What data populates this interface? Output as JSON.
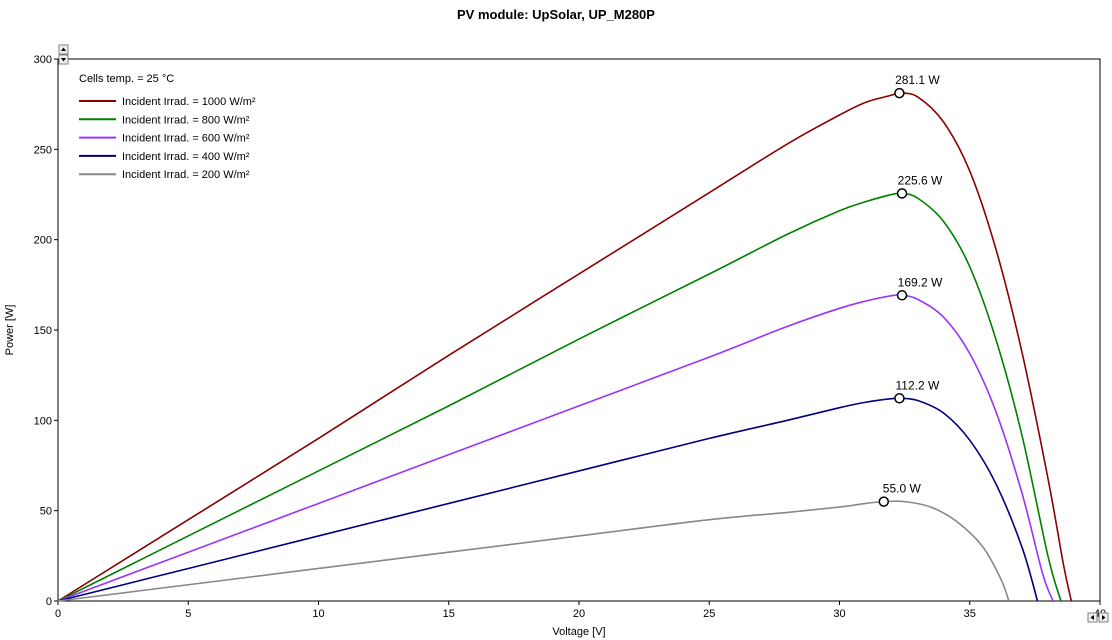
{
  "chart_data": {
    "type": "line",
    "title": "PV module:  UpSolar,  UP_M280P",
    "xlabel": "Voltage [V]",
    "ylabel": "Power [W]",
    "xlim": [
      0,
      40
    ],
    "ylim": [
      0,
      300
    ],
    "xticks": [
      0,
      5,
      10,
      15,
      20,
      25,
      30,
      35,
      40
    ],
    "yticks": [
      0,
      50,
      100,
      150,
      200,
      250,
      300
    ],
    "grid": false,
    "legend_position": "top-left",
    "legend_header": "Cells temp. = 25 °C",
    "series": [
      {
        "name": "Incident Irrad. = 1000 W/m²",
        "color": "#8b0000",
        "points": [
          [
            0,
            0
          ],
          [
            5,
            45
          ],
          [
            10,
            90
          ],
          [
            15,
            136
          ],
          [
            20,
            181
          ],
          [
            25,
            226
          ],
          [
            28,
            253
          ],
          [
            30,
            269
          ],
          [
            31,
            276
          ],
          [
            32,
            280
          ],
          [
            32.3,
            281.1
          ],
          [
            33,
            279
          ],
          [
            34,
            265
          ],
          [
            35,
            238
          ],
          [
            36,
            195
          ],
          [
            37,
            138
          ],
          [
            38,
            68
          ],
          [
            38.6,
            20
          ],
          [
            38.9,
            0
          ]
        ],
        "mpp": {
          "v": 32.3,
          "p": 281.1,
          "label": "281.1 W"
        }
      },
      {
        "name": "Incident Irrad. = 800 W/m²",
        "color": "#008000",
        "points": [
          [
            0,
            0
          ],
          [
            5,
            36
          ],
          [
            10,
            72
          ],
          [
            15,
            108
          ],
          [
            20,
            145
          ],
          [
            25,
            181
          ],
          [
            28,
            203
          ],
          [
            30,
            216
          ],
          [
            31,
            221
          ],
          [
            32,
            225
          ],
          [
            32.4,
            225.6
          ],
          [
            33,
            223
          ],
          [
            34,
            210
          ],
          [
            35,
            185
          ],
          [
            36,
            145
          ],
          [
            37,
            92
          ],
          [
            38,
            25
          ],
          [
            38.5,
            0
          ]
        ],
        "mpp": {
          "v": 32.4,
          "p": 225.6,
          "label": "225.6 W"
        }
      },
      {
        "name": "Incident Irrad. = 600 W/m²",
        "color": "#9933ff",
        "points": [
          [
            0,
            0
          ],
          [
            5,
            27
          ],
          [
            10,
            54
          ],
          [
            15,
            81
          ],
          [
            20,
            108
          ],
          [
            25,
            135
          ],
          [
            28,
            152
          ],
          [
            30,
            162
          ],
          [
            31,
            166
          ],
          [
            32,
            169
          ],
          [
            32.4,
            169.2
          ],
          [
            33,
            167
          ],
          [
            34,
            157
          ],
          [
            35,
            137
          ],
          [
            36,
            105
          ],
          [
            37,
            60
          ],
          [
            37.8,
            15
          ],
          [
            38.2,
            0
          ]
        ],
        "mpp": {
          "v": 32.4,
          "p": 169.2,
          "label": "169.2 W"
        }
      },
      {
        "name": "Incident Irrad. = 400 W/m²",
        "color": "#000080",
        "points": [
          [
            0,
            0
          ],
          [
            5,
            18
          ],
          [
            10,
            36
          ],
          [
            15,
            54
          ],
          [
            20,
            72
          ],
          [
            25,
            90
          ],
          [
            28,
            100
          ],
          [
            30,
            107
          ],
          [
            31,
            110
          ],
          [
            32,
            112
          ],
          [
            32.3,
            112.2
          ],
          [
            33,
            111
          ],
          [
            34,
            104
          ],
          [
            35,
            89
          ],
          [
            36,
            65
          ],
          [
            37,
            30
          ],
          [
            37.6,
            0
          ]
        ],
        "mpp": {
          "v": 32.3,
          "p": 112.2,
          "label": "112.2 W"
        }
      },
      {
        "name": "Incident Irrad. = 200 W/m²",
        "color": "#888888",
        "points": [
          [
            0,
            0
          ],
          [
            5,
            9
          ],
          [
            10,
            18
          ],
          [
            15,
            27
          ],
          [
            20,
            36
          ],
          [
            25,
            45
          ],
          [
            28,
            49
          ],
          [
            30,
            52
          ],
          [
            31,
            54
          ],
          [
            31.7,
            55.0
          ],
          [
            32.5,
            55
          ],
          [
            33.5,
            52
          ],
          [
            34.5,
            44
          ],
          [
            35.5,
            30
          ],
          [
            36.2,
            12
          ],
          [
            36.5,
            0
          ]
        ],
        "mpp": {
          "v": 31.7,
          "p": 55.0,
          "label": "55.0 W"
        }
      }
    ]
  }
}
